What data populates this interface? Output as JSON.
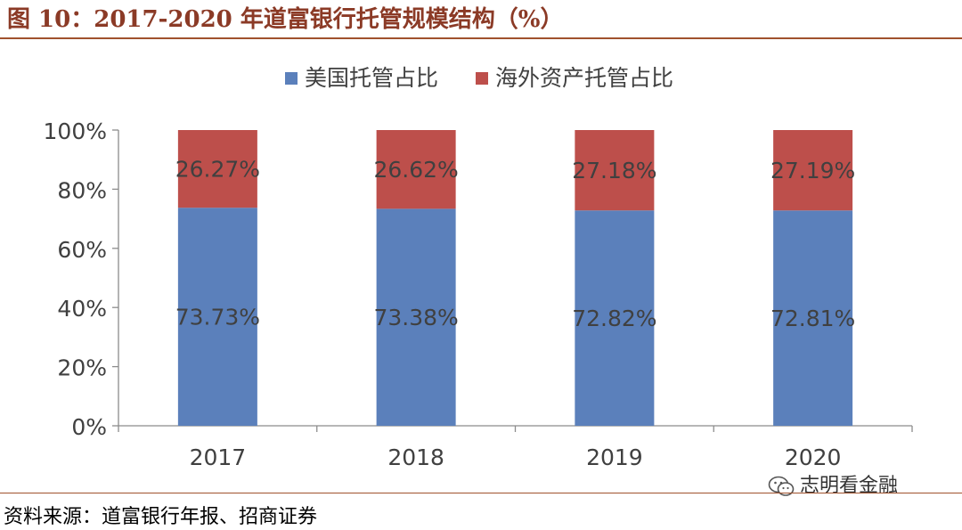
{
  "figure_title": "图 10：2017-2020 年道富银行托管规模结构（%）",
  "source_text": "资料来源：道富银行年报、招商证券",
  "watermark_text": "志明看金融",
  "chart_data": {
    "type": "bar",
    "stacked": true,
    "title": "",
    "xlabel": "",
    "ylabel": "",
    "ylim": [
      0,
      100
    ],
    "yticks": [
      "0%",
      "20%",
      "40%",
      "60%",
      "80%",
      "100%"
    ],
    "categories": [
      "2017",
      "2018",
      "2019",
      "2020"
    ],
    "legend_position": "top",
    "series": [
      {
        "name": "美国托管占比",
        "color": "#5b80bb",
        "values": [
          73.73,
          73.38,
          72.82,
          72.81
        ],
        "labels": [
          "73.73%",
          "73.38%",
          "72.82%",
          "72.81%"
        ]
      },
      {
        "name": "海外资产托管占比",
        "color": "#bd4f4b",
        "values": [
          26.27,
          26.62,
          27.18,
          27.19
        ],
        "labels": [
          "26.27%",
          "26.62%",
          "27.18%",
          "27.19%"
        ]
      }
    ]
  }
}
